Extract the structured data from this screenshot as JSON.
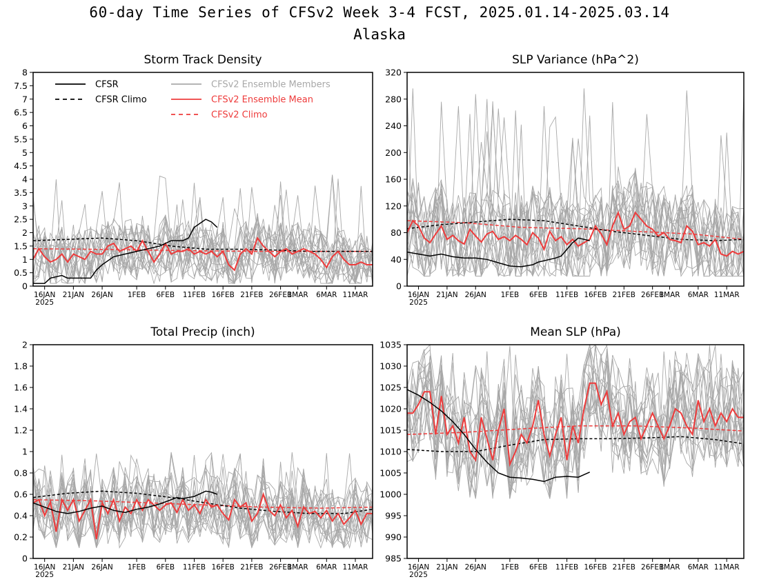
{
  "header": {
    "title": "60-day Time Series of CFSv2 Week 3-4 FCST, 2025.01.14-2025.03.14",
    "subtitle": "Alaska"
  },
  "legend": {
    "items": [
      {
        "label": "CFSR",
        "color": "#000000",
        "dash": false
      },
      {
        "label": "CFSR Climo",
        "color": "#000000",
        "dash": true
      },
      {
        "label": "CFSv2 Ensemble Members",
        "color": "#a8a8a8",
        "dash": false
      },
      {
        "label": "CFSv2 Ensemble Mean",
        "color": "#ee3b3b",
        "dash": false
      },
      {
        "label": "CFSv2 Climo",
        "color": "#ee3b3b",
        "dash": true
      }
    ]
  },
  "colors": {
    "cfsr": "#000000",
    "members": "#a8a8a8",
    "ens_mean": "#ee3b3b",
    "climo_model": "#ee3b3b"
  },
  "x_axis": {
    "ticks": [
      "16JAN",
      "21JAN",
      "26JAN",
      "1FEB",
      "6FEB",
      "11FEB",
      "16FEB",
      "21FEB",
      "26FEB",
      "1MAR",
      "6MAR",
      "11MAR"
    ],
    "tick_days": [
      2,
      7,
      12,
      18,
      23,
      28,
      33,
      38,
      43,
      46,
      51,
      56
    ],
    "year_label": "2025",
    "xlim": [
      0,
      59
    ]
  },
  "chart_data": [
    {
      "type": "line",
      "title": "Storm Track Density",
      "ylim": [
        0,
        8
      ],
      "yticks": [
        "0",
        "0.5",
        "1",
        "1.5",
        "2",
        "2.5",
        "3",
        "3.5",
        "4",
        "4.5",
        "5",
        "5.5",
        "6",
        "6.5",
        "7",
        "7.5",
        "8"
      ],
      "series": [
        {
          "name": "CFSR",
          "x": [
            0,
            2,
            3,
            5,
            6,
            8,
            10,
            11,
            12,
            14,
            16,
            18,
            20,
            22,
            24,
            26,
            27,
            28,
            30,
            31,
            32
          ],
          "values": [
            0.1,
            0.1,
            0.3,
            0.4,
            0.3,
            0.3,
            0.3,
            0.6,
            0.8,
            1.1,
            1.2,
            1.3,
            1.4,
            1.5,
            1.7,
            1.7,
            1.8,
            2.2,
            2.5,
            2.4,
            2.2
          ]
        },
        {
          "name": "CFSR Climo",
          "x": [
            0,
            6,
            12,
            18,
            24,
            30,
            36,
            42,
            48,
            54,
            59
          ],
          "values": [
            1.7,
            1.75,
            1.8,
            1.7,
            1.5,
            1.38,
            1.38,
            1.35,
            1.3,
            1.3,
            1.3
          ]
        },
        {
          "name": "CFSv2 Ensemble Mean",
          "x": [
            0,
            1,
            2,
            3,
            4,
            5,
            6,
            7,
            8,
            9,
            10,
            11,
            12,
            13,
            14,
            15,
            16,
            17,
            18,
            19,
            20,
            21,
            22,
            23,
            24,
            25,
            26,
            27,
            28,
            29,
            30,
            31,
            32,
            33,
            34,
            35,
            36,
            37,
            38,
            39,
            40,
            41,
            42,
            43,
            44,
            45,
            46,
            47,
            48,
            49,
            50,
            51,
            52,
            53,
            54,
            55,
            56,
            57,
            58,
            59
          ],
          "values": [
            1.0,
            1.4,
            1.1,
            0.9,
            1.0,
            1.2,
            0.9,
            1.2,
            1.1,
            1.0,
            1.3,
            1.2,
            1.2,
            1.5,
            1.6,
            1.3,
            1.4,
            1.5,
            1.3,
            1.7,
            1.3,
            0.9,
            1.2,
            1.6,
            1.2,
            1.3,
            1.3,
            1.4,
            1.2,
            1.3,
            1.2,
            1.3,
            1.1,
            1.3,
            0.8,
            0.6,
            1.2,
            1.4,
            1.2,
            1.8,
            1.5,
            1.3,
            1.1,
            1.3,
            1.4,
            1.2,
            1.3,
            1.4,
            1.3,
            1.2,
            1.0,
            0.7,
            1.1,
            1.3,
            1.0,
            0.8,
            0.8,
            0.9,
            0.8,
            0.8
          ]
        },
        {
          "name": "CFSv2 Climo",
          "x": [
            0,
            10,
            20,
            30,
            40,
            50,
            59
          ],
          "values": [
            1.4,
            1.38,
            1.35,
            1.32,
            1.3,
            1.3,
            1.3
          ]
        }
      ],
      "member_range": {
        "low": 0.1,
        "high": 3.0,
        "peak": 4.2
      }
    },
    {
      "type": "line",
      "title": "SLP Variance (hPa^2)",
      "ylim": [
        0,
        320
      ],
      "yticks": [
        "0",
        "40",
        "80",
        "120",
        "160",
        "200",
        "240",
        "280",
        "320"
      ],
      "series": [
        {
          "name": "CFSR",
          "x": [
            0,
            2,
            4,
            6,
            8,
            10,
            12,
            14,
            16,
            18,
            20,
            22,
            23,
            24,
            26,
            27,
            28,
            29,
            30,
            31,
            32
          ],
          "values": [
            51,
            48,
            45,
            48,
            44,
            42,
            42,
            40,
            35,
            30,
            29,
            32,
            36,
            38,
            42,
            45,
            55,
            65,
            72,
            70,
            68
          ]
        },
        {
          "name": "CFSR Climo",
          "x": [
            0,
            6,
            12,
            18,
            24,
            30,
            36,
            42,
            48,
            54,
            59
          ],
          "values": [
            86,
            92,
            96,
            100,
            98,
            90,
            82,
            76,
            70,
            68,
            70
          ]
        },
        {
          "name": "CFSv2 Ensemble Mean",
          "x": [
            0,
            1,
            2,
            3,
            4,
            5,
            6,
            7,
            8,
            9,
            10,
            11,
            12,
            13,
            14,
            15,
            16,
            17,
            18,
            19,
            20,
            21,
            22,
            23,
            24,
            25,
            26,
            27,
            28,
            29,
            30,
            31,
            32,
            33,
            34,
            35,
            36,
            37,
            38,
            39,
            40,
            41,
            42,
            43,
            44,
            45,
            46,
            47,
            48,
            49,
            50,
            51,
            52,
            53,
            54,
            55,
            56,
            57,
            58,
            59
          ],
          "values": [
            80,
            98,
            90,
            72,
            65,
            78,
            90,
            70,
            76,
            68,
            63,
            85,
            75,
            66,
            78,
            82,
            70,
            74,
            68,
            76,
            70,
            62,
            80,
            72,
            55,
            82,
            68,
            74,
            62,
            70,
            60,
            65,
            70,
            90,
            78,
            62,
            90,
            110,
            85,
            90,
            110,
            100,
            90,
            85,
            75,
            80,
            70,
            68,
            65,
            90,
            82,
            62,
            65,
            60,
            70,
            48,
            45,
            52,
            48,
            52
          ]
        },
        {
          "name": "CFSv2 Climo",
          "x": [
            0,
            10,
            20,
            30,
            40,
            50,
            59
          ],
          "values": [
            98,
            95,
            88,
            86,
            82,
            78,
            70
          ]
        }
      ],
      "member_range": {
        "low": 15,
        "high": 200,
        "peak": 300
      }
    },
    {
      "type": "line",
      "title": "Total Precip (inch)",
      "ylim": [
        0,
        2
      ],
      "yticks": [
        "0",
        "0.2",
        "0.4",
        "0.6",
        "0.8",
        "1",
        "1.2",
        "1.4",
        "1.6",
        "1.8",
        "2"
      ],
      "series": [
        {
          "name": "CFSR",
          "x": [
            0,
            2,
            4,
            6,
            8,
            10,
            12,
            14,
            16,
            18,
            20,
            22,
            24,
            25,
            26,
            28,
            30,
            31,
            32
          ],
          "values": [
            0.52,
            0.48,
            0.44,
            0.42,
            0.44,
            0.47,
            0.49,
            0.45,
            0.43,
            0.46,
            0.48,
            0.51,
            0.55,
            0.57,
            0.56,
            0.58,
            0.63,
            0.62,
            0.6
          ]
        },
        {
          "name": "CFSR Climo",
          "x": [
            0,
            6,
            12,
            18,
            24,
            30,
            36,
            42,
            48,
            54,
            59
          ],
          "values": [
            0.57,
            0.61,
            0.63,
            0.61,
            0.57,
            0.52,
            0.47,
            0.44,
            0.42,
            0.42,
            0.46
          ]
        },
        {
          "name": "CFSv2 Ensemble Mean",
          "x": [
            0,
            1,
            2,
            3,
            4,
            5,
            6,
            7,
            8,
            9,
            10,
            11,
            12,
            13,
            14,
            15,
            16,
            17,
            18,
            19,
            20,
            21,
            22,
            23,
            24,
            25,
            26,
            27,
            28,
            29,
            30,
            31,
            32,
            33,
            34,
            35,
            36,
            37,
            38,
            39,
            40,
            41,
            42,
            43,
            44,
            45,
            46,
            47,
            48,
            49,
            50,
            51,
            52,
            53,
            54,
            55,
            56,
            57,
            58,
            59
          ],
          "values": [
            0.52,
            0.55,
            0.4,
            0.53,
            0.25,
            0.55,
            0.45,
            0.55,
            0.35,
            0.45,
            0.55,
            0.18,
            0.52,
            0.42,
            0.55,
            0.35,
            0.48,
            0.42,
            0.55,
            0.45,
            0.55,
            0.5,
            0.45,
            0.5,
            0.52,
            0.43,
            0.55,
            0.45,
            0.5,
            0.42,
            0.55,
            0.48,
            0.5,
            0.42,
            0.36,
            0.55,
            0.48,
            0.52,
            0.35,
            0.42,
            0.6,
            0.45,
            0.4,
            0.5,
            0.38,
            0.45,
            0.3,
            0.48,
            0.42,
            0.44,
            0.38,
            0.45,
            0.35,
            0.42,
            0.32,
            0.38,
            0.45,
            0.32,
            0.42,
            0.42
          ]
        },
        {
          "name": "CFSv2 Climo",
          "x": [
            0,
            10,
            20,
            30,
            40,
            50,
            59
          ],
          "values": [
            0.55,
            0.54,
            0.52,
            0.5,
            0.48,
            0.47,
            0.48
          ]
        }
      ],
      "member_range": {
        "low": 0.1,
        "high": 0.9,
        "peak": 1.0
      }
    },
    {
      "type": "line",
      "title": "Mean SLP (hPa)",
      "ylim": [
        985,
        1035
      ],
      "yticks": [
        "985",
        "990",
        "995",
        "1000",
        "1005",
        "1010",
        "1015",
        "1020",
        "1025",
        "1030",
        "1035"
      ],
      "series": [
        {
          "name": "CFSR",
          "x": [
            0,
            2,
            4,
            6,
            8,
            10,
            12,
            14,
            16,
            18,
            20,
            22,
            24,
            25,
            26,
            28,
            30,
            32
          ],
          "values": [
            1024.5,
            1023.2,
            1021.5,
            1019.5,
            1017,
            1014,
            1010.5,
            1007.5,
            1005,
            1004,
            1003.8,
            1003.5,
            1003,
            1003.5,
            1004,
            1004.2,
            1004,
            1005.2
          ]
        },
        {
          "name": "CFSR Climo",
          "x": [
            0,
            6,
            12,
            18,
            24,
            30,
            36,
            42,
            48,
            54,
            59
          ],
          "values": [
            1010.5,
            1010,
            1010,
            1011.5,
            1012.8,
            1013,
            1013,
            1013.2,
            1013.5,
            1012.8,
            1011.8
          ]
        },
        {
          "name": "CFSv2 Ensemble Mean",
          "x": [
            0,
            1,
            2,
            3,
            4,
            5,
            6,
            7,
            8,
            9,
            10,
            11,
            12,
            13,
            14,
            15,
            16,
            17,
            18,
            19,
            20,
            21,
            22,
            23,
            24,
            25,
            26,
            27,
            28,
            29,
            30,
            31,
            32,
            33,
            34,
            35,
            36,
            37,
            38,
            39,
            40,
            41,
            42,
            43,
            44,
            45,
            46,
            47,
            48,
            49,
            50,
            51,
            52,
            53,
            54,
            55,
            56,
            57,
            58,
            59
          ],
          "values": [
            1019,
            1019,
            1021,
            1024,
            1024,
            1014,
            1023,
            1014,
            1016,
            1012,
            1018,
            1010,
            1008,
            1018,
            1013,
            1008,
            1015,
            1020,
            1007,
            1010,
            1014,
            1012,
            1016,
            1022,
            1014,
            1009,
            1014,
            1018,
            1008,
            1016,
            1012,
            1020,
            1026,
            1026,
            1021,
            1024,
            1016,
            1019,
            1014,
            1017,
            1018,
            1013,
            1016,
            1019,
            1016,
            1013,
            1016,
            1020,
            1019,
            1016,
            1014,
            1022,
            1017,
            1020,
            1016,
            1019,
            1017,
            1020,
            1018,
            1018
          ]
        },
        {
          "name": "CFSv2 Climo",
          "x": [
            0,
            10,
            20,
            30,
            40,
            50,
            59
          ],
          "values": [
            1014,
            1014.5,
            1015.3,
            1016,
            1016,
            1015.5,
            1014.8
          ]
        }
      ],
      "member_range": {
        "low": 999,
        "high": 1030,
        "peak": 1035
      }
    }
  ]
}
